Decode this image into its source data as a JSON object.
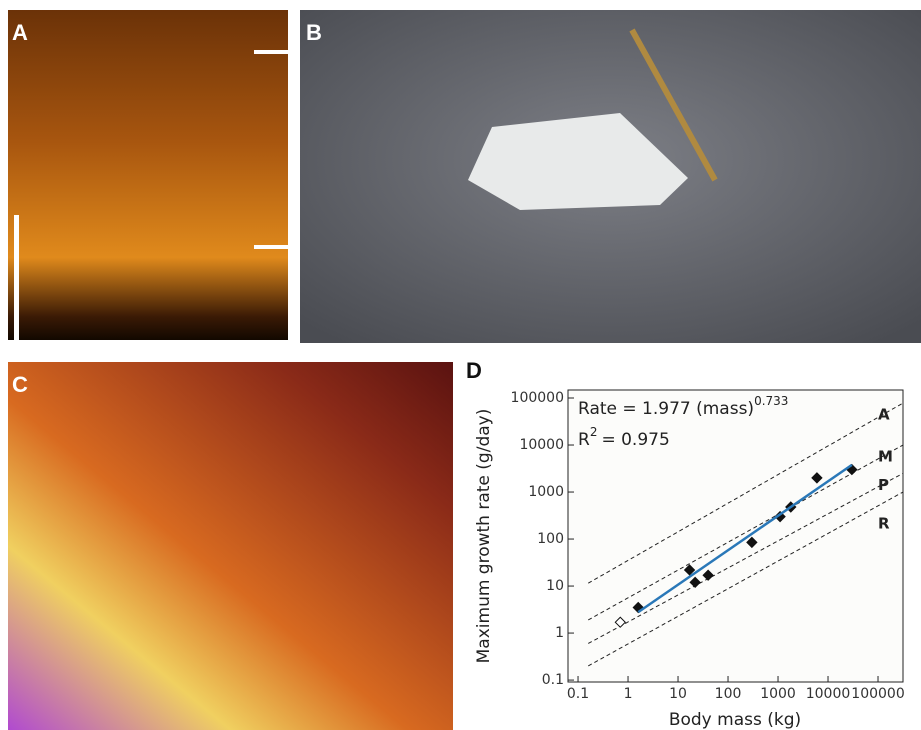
{
  "panels": [
    {
      "label": "A"
    },
    {
      "label": "B"
    },
    {
      "label": "C"
    }
  ],
  "chart_data": {
    "type": "scatter",
    "label": "D",
    "xlabel": "Body mass (kg)",
    "ylabel": "Maximum growth rate (g/day)",
    "equation": {
      "text": "Rate = 1.977 (mass)",
      "exponent": "0.733"
    },
    "r2": {
      "symbol": "R",
      "power": "2",
      "text": "= 0.975"
    },
    "xscale": "log",
    "yscale": "log",
    "xlim": [
      0.063,
      316000
    ],
    "ylim": [
      0.091,
      148000
    ],
    "xticks": [
      0.1,
      1,
      10,
      100,
      1000,
      10000,
      100000
    ],
    "yticks": [
      0.1,
      1,
      10,
      100,
      1000,
      10000,
      100000
    ],
    "series": [
      {
        "color": "#111111",
        "marker": "diamond",
        "x": [
          1.6,
          17,
          22,
          40,
          300,
          1100,
          1800,
          6000,
          30000
        ],
        "values": [
          3.5,
          22,
          12,
          17,
          85,
          300,
          480,
          2000,
          3000
        ]
      },
      {
        "color": "#111111",
        "marker": "open-diamond",
        "x": [
          0.7
        ],
        "values": [
          1.7
        ]
      },
      {
        "color": "#2a78b8",
        "marker": "line",
        "x": [
          1.6,
          30000
        ],
        "values": [
          2.79,
          3779
        ]
      }
    ],
    "reference_lines": [
      {
        "name": "A",
        "x": [
          0.16,
          316000
        ],
        "values": [
          11.5,
          78000
        ]
      },
      {
        "name": "M",
        "x": [
          0.16,
          316000
        ],
        "values": [
          1.9,
          10000
        ]
      },
      {
        "name": "P",
        "x": [
          0.16,
          316000
        ],
        "values": [
          0.6,
          2500
        ]
      },
      {
        "name": "R",
        "x": [
          0.16,
          316000
        ],
        "values": [
          0.2,
          1000
        ]
      }
    ]
  }
}
